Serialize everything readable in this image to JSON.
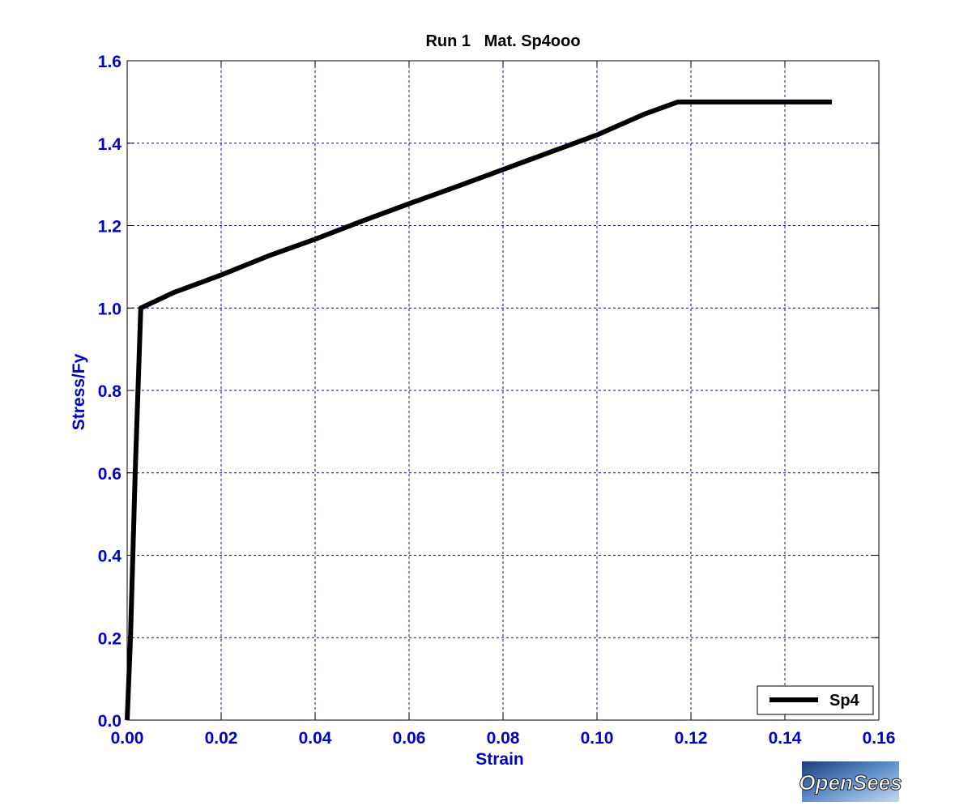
{
  "chart_data": {
    "type": "line",
    "title": "Run 1   Mat. Sp4ooo",
    "xlabel": "Strain",
    "ylabel": "Stress/Fy",
    "xlim": [
      0,
      0.16
    ],
    "ylim": [
      0,
      1.6
    ],
    "xticks": [
      0,
      0.02,
      0.04,
      0.06,
      0.08,
      0.1,
      0.12,
      0.14,
      0.16
    ],
    "xtick_labels": [
      "0.00",
      "0.02",
      "0.04",
      "0.06",
      "0.08",
      "0.10",
      "0.12",
      "0.14",
      "0.16"
    ],
    "yticks": [
      0,
      0.2,
      0.4,
      0.6,
      0.8,
      1.0,
      1.2,
      1.4,
      1.6
    ],
    "ytick_labels": [
      "0.0",
      "0.2",
      "0.4",
      "0.6",
      "0.8",
      "1.0",
      "1.2",
      "1.4",
      "1.6"
    ],
    "grid": true,
    "grid_style": "dashed",
    "legend_position": "bottom-right",
    "colors": {
      "axis_text": "#0000cc",
      "grid": "#0000cc",
      "line": "#000000"
    },
    "series": [
      {
        "name": "Sp4",
        "x": [
          0,
          0.0007,
          0.0017,
          0.0029,
          0.01,
          0.02,
          0.03,
          0.04,
          0.05,
          0.06,
          0.07,
          0.08,
          0.09,
          0.1,
          0.11,
          0.1172,
          0.13,
          0.14,
          0.15
        ],
        "y": [
          0,
          0.2,
          0.6,
          1.0,
          1.038,
          1.08,
          1.126,
          1.167,
          1.211,
          1.253,
          1.294,
          1.336,
          1.378,
          1.42,
          1.47,
          1.5,
          1.5,
          1.5,
          1.5
        ]
      }
    ]
  },
  "logo": {
    "text": "OpenSees"
  }
}
